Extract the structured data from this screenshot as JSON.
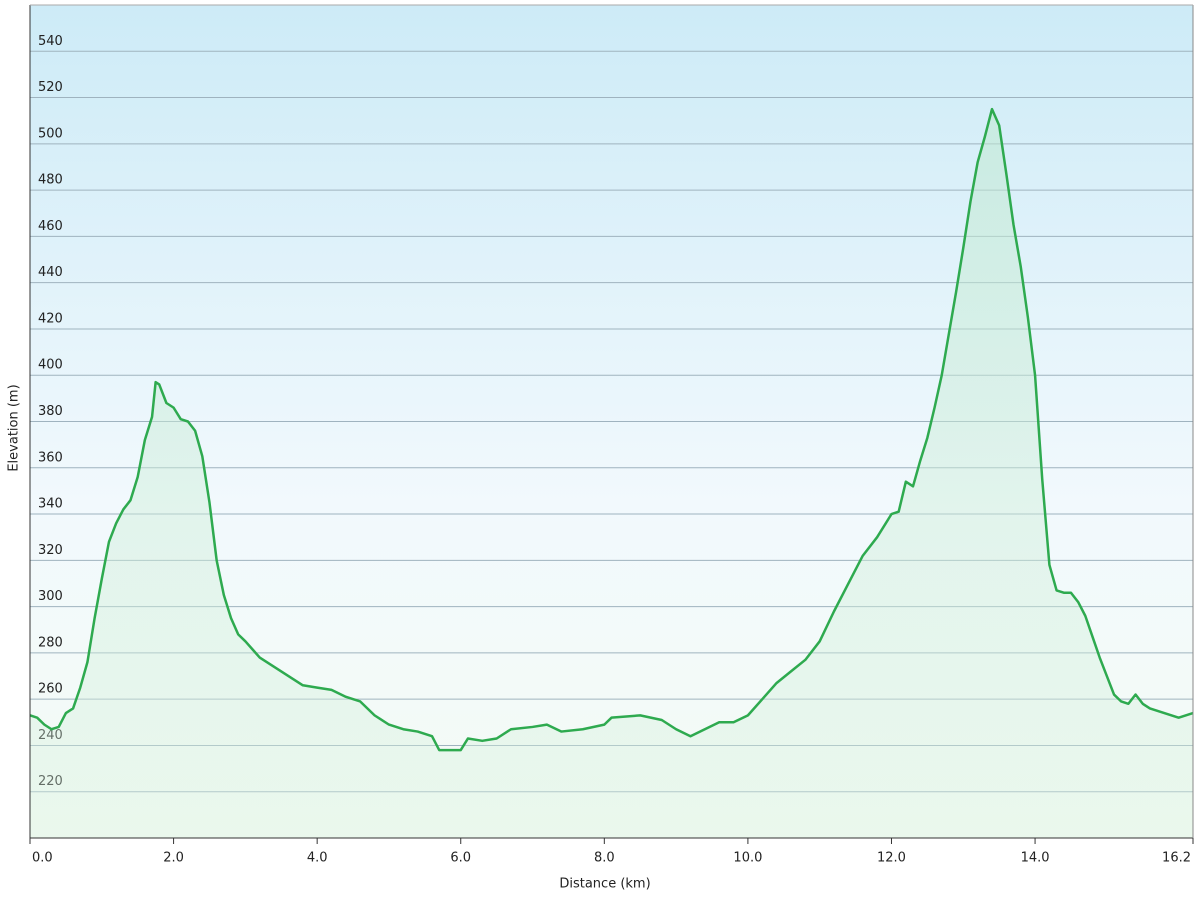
{
  "chart_data": {
    "type": "area",
    "xlabel": "Distance  (km)",
    "ylabel": "Elevation (m)",
    "x": [
      0,
      0.1,
      0.2,
      0.3,
      0.4,
      0.5,
      0.6,
      0.7,
      0.8,
      0.9,
      1.0,
      1.1,
      1.2,
      1.3,
      1.4,
      1.5,
      1.6,
      1.7,
      1.75,
      1.8,
      1.9,
      2.0,
      2.1,
      2.2,
      2.3,
      2.4,
      2.5,
      2.6,
      2.7,
      2.8,
      2.9,
      3.0,
      3.2,
      3.4,
      3.6,
      3.8,
      4.0,
      4.2,
      4.4,
      4.6,
      4.8,
      5.0,
      5.2,
      5.4,
      5.6,
      5.7,
      5.9,
      6.0,
      6.1,
      6.3,
      6.5,
      6.7,
      7.0,
      7.2,
      7.4,
      7.7,
      8.0,
      8.1,
      8.5,
      8.8,
      9.0,
      9.2,
      9.4,
      9.6,
      9.8,
      10.0,
      10.2,
      10.4,
      10.6,
      10.8,
      11.0,
      11.2,
      11.4,
      11.6,
      11.8,
      12.0,
      12.1,
      12.2,
      12.3,
      12.4,
      12.5,
      12.6,
      12.7,
      12.8,
      12.9,
      13.0,
      13.1,
      13.2,
      13.3,
      13.4,
      13.5,
      13.6,
      13.7,
      13.8,
      13.9,
      14.0,
      14.1,
      14.2,
      14.3,
      14.4,
      14.5,
      14.6,
      14.7,
      14.8,
      14.9,
      15.0,
      15.1,
      15.2,
      15.3,
      15.4,
      15.5,
      15.6,
      15.8,
      16.0,
      16.2
    ],
    "values": [
      253,
      252,
      249,
      247,
      248,
      254,
      256,
      265,
      276,
      295,
      312,
      328,
      336,
      342,
      346,
      356,
      372,
      382,
      397,
      396,
      388,
      386,
      381,
      380,
      376,
      365,
      345,
      320,
      305,
      295,
      288,
      285,
      278,
      274,
      270,
      266,
      265,
      264,
      261,
      259,
      253,
      249,
      247,
      246,
      244,
      238,
      238,
      238,
      243,
      242,
      243,
      247,
      248,
      249,
      246,
      247,
      249,
      252,
      253,
      251,
      247,
      244,
      247,
      250,
      250,
      253,
      260,
      267,
      272,
      277,
      285,
      298,
      310,
      322,
      330,
      340,
      341,
      354,
      352,
      363,
      373,
      386,
      400,
      418,
      436,
      455,
      475,
      492,
      503,
      515,
      508,
      487,
      465,
      447,
      425,
      400,
      355,
      318,
      307,
      306,
      306,
      302,
      296,
      287,
      278,
      270,
      262,
      259,
      258,
      262,
      258,
      256,
      254,
      252,
      254
    ],
    "color": "#2eaa4f",
    "xlim": [
      0,
      16.2
    ],
    "ylim": [
      200,
      560
    ],
    "xticks": [
      {
        "value": 0,
        "label": "0.0"
      },
      {
        "value": 2,
        "label": "2.0"
      },
      {
        "value": 4,
        "label": "4.0"
      },
      {
        "value": 6,
        "label": "6.0"
      },
      {
        "value": 8,
        "label": "8.0"
      },
      {
        "value": 10,
        "label": "10.0"
      },
      {
        "value": 12,
        "label": "12.0"
      },
      {
        "value": 14,
        "label": "14.0"
      },
      16.2
    ],
    "yticks": [
      220,
      240,
      260,
      280,
      300,
      320,
      340,
      360,
      380,
      400,
      420,
      440,
      460,
      480,
      500,
      520,
      540
    ],
    "grid": true
  }
}
